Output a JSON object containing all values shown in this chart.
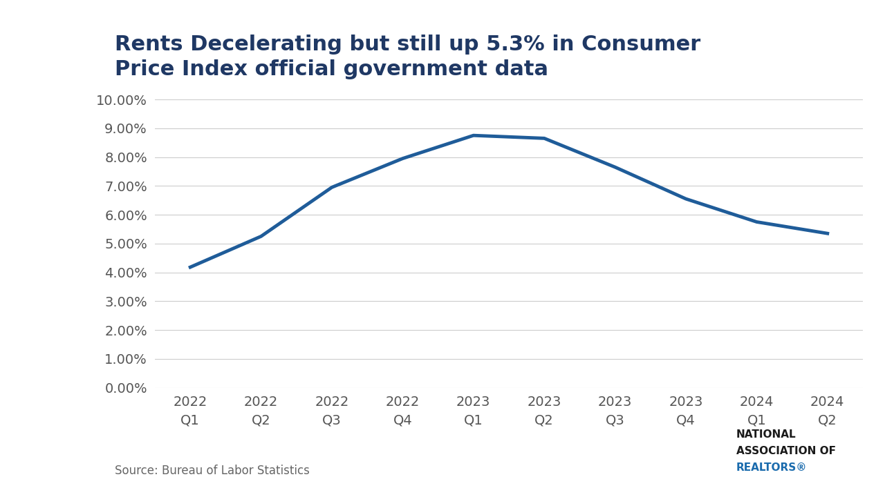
{
  "title_line1": "Rents Decelerating but still up 5.3% in Consumer",
  "title_line2": "Price Index official government data",
  "x_labels": [
    "2022\nQ1",
    "2022\nQ2",
    "2022\nQ3",
    "2022\nQ4",
    "2023\nQ1",
    "2023\nQ2",
    "2023\nQ3",
    "2023\nQ4",
    "2024\nQ1",
    "2024\nQ2"
  ],
  "y_values": [
    4.18,
    5.25,
    6.95,
    7.95,
    8.75,
    8.65,
    7.65,
    6.55,
    5.75,
    5.35
  ],
  "line_color": "#1F5C99",
  "line_width": 3.5,
  "background_color": "#FFFFFF",
  "grid_color": "#CCCCCC",
  "y_min": 0.0,
  "y_max": 10.0,
  "y_ticks": [
    0.0,
    1.0,
    2.0,
    3.0,
    4.0,
    5.0,
    6.0,
    7.0,
    8.0,
    9.0,
    10.0
  ],
  "y_tick_labels": [
    "0.00%",
    "1.00%",
    "2.00%",
    "3.00%",
    "4.00%",
    "5.00%",
    "6.00%",
    "7.00%",
    "8.00%",
    "9.00%",
    "10.00%"
  ],
  "source_text": "Source: Bureau of Labor Statistics",
  "title_color": "#1F3864",
  "title_fontsize": 22,
  "axis_fontsize": 14,
  "source_fontsize": 12,
  "nar_logo_color": "#1A6BAD",
  "nar_text_line1": "NATIONAL",
  "nar_text_line2": "ASSOCIATION OF",
  "nar_text_line3": "REALTORS®"
}
